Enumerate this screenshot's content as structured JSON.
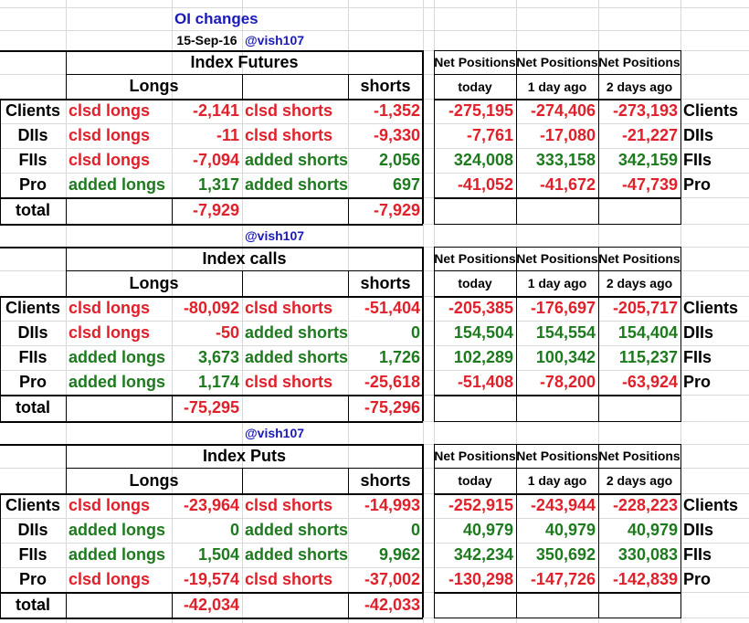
{
  "header": {
    "title": "OI changes",
    "date": "15-Sep-16",
    "handle": "@vish107"
  },
  "labels": {
    "longs": "Longs",
    "shorts": "shorts",
    "net_positions": "Net Positions",
    "today": "today",
    "day1": "1 day ago",
    "day2": "2 days ago",
    "total": "total"
  },
  "sections": [
    {
      "title": "Index Futures",
      "rows": [
        {
          "entity": "Clients",
          "long_action": "clsd longs",
          "long_value": "-2,141",
          "short_action": "clsd shorts",
          "short_value": "-1,352",
          "net_today": "-275,195",
          "net_1d": "-274,406",
          "net_2d": "-273,193"
        },
        {
          "entity": "DIIs",
          "long_action": "clsd longs",
          "long_value": "-11",
          "short_action": "clsd shorts",
          "short_value": "-9,330",
          "net_today": "-7,761",
          "net_1d": "-17,080",
          "net_2d": "-21,227"
        },
        {
          "entity": "FIIs",
          "long_action": "clsd longs",
          "long_value": "-7,094",
          "short_action": "added shorts",
          "short_value": "2,056",
          "net_today": "324,008",
          "net_1d": "333,158",
          "net_2d": "342,159"
        },
        {
          "entity": "Pro",
          "long_action": "added longs",
          "long_value": "1,317",
          "short_action": "added shorts",
          "short_value": "697",
          "net_today": "-41,052",
          "net_1d": "-41,672",
          "net_2d": "-47,739"
        }
      ],
      "total_long": "-7,929",
      "total_short": "-7,929"
    },
    {
      "title": "Index calls",
      "rows": [
        {
          "entity": "Clients",
          "long_action": "clsd longs",
          "long_value": "-80,092",
          "short_action": "clsd shorts",
          "short_value": "-51,404",
          "net_today": "-205,385",
          "net_1d": "-176,697",
          "net_2d": "-205,717"
        },
        {
          "entity": "DIIs",
          "long_action": "clsd longs",
          "long_value": "-50",
          "short_action": "added shorts",
          "short_value": "0",
          "net_today": "154,504",
          "net_1d": "154,554",
          "net_2d": "154,404"
        },
        {
          "entity": "FIIs",
          "long_action": "added longs",
          "long_value": "3,673",
          "short_action": "added shorts",
          "short_value": "1,726",
          "net_today": "102,289",
          "net_1d": "100,342",
          "net_2d": "115,237"
        },
        {
          "entity": "Pro",
          "long_action": "added longs",
          "long_value": "1,174",
          "short_action": "clsd shorts",
          "short_value": "-25,618",
          "net_today": "-51,408",
          "net_1d": "-78,200",
          "net_2d": "-63,924"
        }
      ],
      "total_long": "-75,295",
      "total_short": "-75,296"
    },
    {
      "title": "Index Puts",
      "rows": [
        {
          "entity": "Clients",
          "long_action": "clsd longs",
          "long_value": "-23,964",
          "short_action": "clsd shorts",
          "short_value": "-14,993",
          "net_today": "-252,915",
          "net_1d": "-243,944",
          "net_2d": "-228,223"
        },
        {
          "entity": "DIIs",
          "long_action": "added longs",
          "long_value": "0",
          "short_action": "added shorts",
          "short_value": "0",
          "net_today": "40,979",
          "net_1d": "40,979",
          "net_2d": "40,979"
        },
        {
          "entity": "FIIs",
          "long_action": "added longs",
          "long_value": "1,504",
          "short_action": "added shorts",
          "short_value": "9,962",
          "net_today": "342,234",
          "net_1d": "350,692",
          "net_2d": "330,083"
        },
        {
          "entity": "Pro",
          "long_action": "clsd longs",
          "long_value": "-19,574",
          "short_action": "clsd shorts",
          "short_value": "-37,002",
          "net_today": "-130,298",
          "net_1d": "-147,726",
          "net_2d": "-142,839"
        }
      ],
      "total_long": "-42,034",
      "total_short": "-42,033"
    }
  ],
  "colors": {
    "negative": "#e0202a",
    "positive": "#1e7a1e",
    "accent": "#1a1ab8"
  }
}
